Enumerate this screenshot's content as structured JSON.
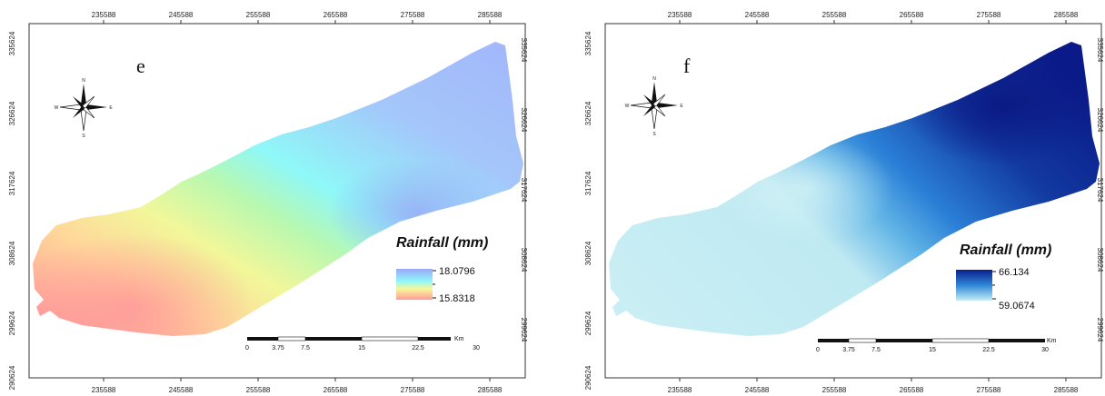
{
  "x_ticks": [
    "235588",
    "245588",
    "255588",
    "265588",
    "275588",
    "285588"
  ],
  "y_ticks": [
    "335624",
    "326624",
    "317624",
    "308624",
    "299624",
    "290624"
  ],
  "scale_bar": {
    "labels": [
      "0",
      "3.75",
      "7.5",
      "15",
      "22.5",
      "30"
    ],
    "unit": "Km"
  },
  "compass": {
    "n": "N",
    "s": "S",
    "e": "E",
    "w": "W"
  },
  "panels": [
    {
      "letter": "e",
      "legend_title": "Rainfall (mm)",
      "legend_max": "18.0796",
      "legend_min": "15.8318",
      "colors": {
        "low": "#ff9a9a",
        "mid": "#8ff8f8",
        "high": "#9aa8f8"
      }
    },
    {
      "letter": "f",
      "legend_title": "Rainfall (mm)",
      "legend_max": "66.134",
      "legend_min": "59.0674",
      "colors": {
        "low": "#c6eef4",
        "mid": "#2e86d8",
        "high": "#0a1f8c"
      }
    }
  ]
}
